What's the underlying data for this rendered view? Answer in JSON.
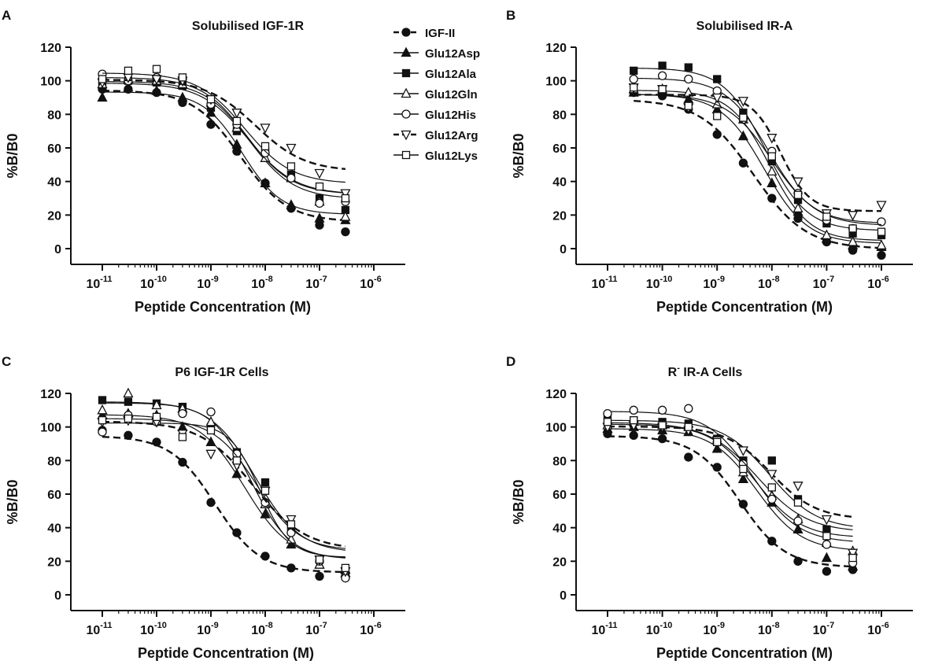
{
  "figure": {
    "legend_entries": [
      {
        "name": "IGF-II",
        "marker": "filled-circle",
        "line": "dashed"
      },
      {
        "name": "Glu12Asp",
        "marker": "filled-triangle-up",
        "line": "solid"
      },
      {
        "name": "Glu12Ala",
        "marker": "filled-square",
        "line": "solid"
      },
      {
        "name": "Glu12Gln",
        "marker": "open-triangle-up",
        "line": "solid"
      },
      {
        "name": "Glu12His",
        "marker": "open-circle",
        "line": "solid"
      },
      {
        "name": "Glu12Arg",
        "marker": "open-triangle-down",
        "line": "dashed"
      },
      {
        "name": "Glu12Lys",
        "marker": "open-square",
        "line": "solid"
      }
    ],
    "legend_placement": "right of panel A",
    "colors": {
      "ink": "#111111",
      "background": "#ffffff"
    }
  },
  "chart_data": [
    {
      "type": "scatter",
      "panel": "A",
      "title": "Solubilised IGF-1R",
      "xlabel": "Peptide Concentration (M)",
      "ylabel": "%B/B0",
      "x_scale": "log",
      "xlim": [
        1e-11,
        1e-06
      ],
      "ylim": [
        0,
        120
      ],
      "x_ticks": [
        1e-11,
        1e-10,
        1e-09,
        1e-08,
        1e-07,
        1e-06
      ],
      "y_ticks": [
        0,
        20,
        40,
        60,
        80,
        100,
        120
      ],
      "grid": false,
      "x": [
        1e-11,
        3e-11,
        1e-10,
        3e-10,
        1e-09,
        3e-09,
        1e-08,
        3e-08,
        1e-07,
        3e-07
      ],
      "series": [
        {
          "name": "IGF-II",
          "values": [
            95,
            95,
            93,
            87,
            74,
            58,
            39,
            24,
            14,
            10
          ],
          "fit_curve": "dashed"
        },
        {
          "name": "Glu12Asp",
          "values": [
            90,
            96,
            94,
            90,
            81,
            62,
            39,
            26,
            18,
            17
          ],
          "fit_curve": "solid"
        },
        {
          "name": "Glu12Ala",
          "values": [
            97,
            100,
            99,
            97,
            84,
            70,
            58,
            44,
            30,
            23
          ],
          "fit_curve": "solid"
        },
        {
          "name": "Glu12Gln",
          "values": [
            98,
            101,
            100,
            98,
            87,
            72,
            54,
            42,
            28,
            19
          ],
          "fit_curve": "solid"
        },
        {
          "name": "Glu12His",
          "values": [
            104,
            100,
            102,
            101,
            86,
            74,
            57,
            42,
            27,
            28
          ],
          "fit_curve": "solid"
        },
        {
          "name": "Glu12Arg",
          "values": [
            99,
            102,
            101,
            100,
            89,
            81,
            72,
            60,
            45,
            33
          ],
          "fit_curve": "dashed"
        },
        {
          "name": "Glu12Lys",
          "values": [
            101,
            106,
            107,
            102,
            89,
            76,
            61,
            49,
            37,
            30
          ],
          "fit_curve": "solid"
        }
      ]
    },
    {
      "type": "scatter",
      "panel": "B",
      "title": "Solubilised IR-A",
      "xlabel": "Peptide Concentration (M)",
      "ylabel": "%B/B0",
      "x_scale": "log",
      "xlim": [
        1e-11,
        1e-06
      ],
      "ylim": [
        0,
        120
      ],
      "x_ticks": [
        1e-11,
        1e-10,
        1e-09,
        1e-08,
        1e-07,
        1e-06
      ],
      "y_ticks": [
        0,
        20,
        40,
        60,
        80,
        100,
        120
      ],
      "grid": false,
      "x": [
        3e-11,
        1e-10,
        3e-10,
        1e-09,
        3e-09,
        1e-08,
        3e-08,
        1e-07,
        3e-07,
        1e-06
      ],
      "series": [
        {
          "name": "IGF-II",
          "values": [
            93,
            91,
            83,
            68,
            51,
            30,
            18,
            4,
            -1,
            -4
          ],
          "fit_curve": "dashed"
        },
        {
          "name": "Glu12Asp",
          "values": [
            93,
            94,
            89,
            83,
            67,
            39,
            22,
            6,
            2,
            1
          ],
          "fit_curve": "solid"
        },
        {
          "name": "Glu12Ala",
          "values": [
            106,
            109,
            108,
            101,
            81,
            52,
            29,
            15,
            9,
            8
          ],
          "fit_curve": "solid"
        },
        {
          "name": "Glu12Gln",
          "values": [
            95,
            95,
            93,
            86,
            77,
            46,
            24,
            8,
            4,
            2
          ],
          "fit_curve": "solid"
        },
        {
          "name": "Glu12His",
          "values": [
            101,
            103,
            101,
            94,
            77,
            58,
            33,
            17,
            12,
            16
          ],
          "fit_curve": "solid"
        },
        {
          "name": "Glu12Arg",
          "values": [
            96,
            95,
            84,
            90,
            88,
            66,
            40,
            21,
            20,
            26
          ],
          "fit_curve": "dashed"
        },
        {
          "name": "Glu12Lys",
          "values": [
            96,
            95,
            85,
            79,
            78,
            55,
            32,
            19,
            12,
            10
          ],
          "fit_curve": "solid"
        }
      ]
    },
    {
      "type": "scatter",
      "panel": "C",
      "title": "P6 IGF-1R Cells",
      "xlabel": "Peptide Concentration (M)",
      "ylabel": "%B/B0",
      "x_scale": "log",
      "xlim": [
        1e-11,
        1e-06
      ],
      "ylim": [
        0,
        120
      ],
      "x_ticks": [
        1e-11,
        1e-10,
        1e-09,
        1e-08,
        1e-07,
        1e-06
      ],
      "y_ticks": [
        0,
        20,
        40,
        60,
        80,
        100,
        120
      ],
      "grid": false,
      "x": [
        1e-11,
        3e-11,
        1e-10,
        3e-10,
        1e-09,
        3e-09,
        1e-08,
        3e-08,
        1e-07,
        3e-07
      ],
      "series": [
        {
          "name": "IGF-II",
          "values": [
            98,
            95,
            91,
            79,
            55,
            37,
            23,
            16,
            11,
            13
          ],
          "fit_curve": "dashed"
        },
        {
          "name": "Glu12Asp",
          "values": [
            107,
            108,
            107,
            100,
            91,
            72,
            48,
            30,
            18,
            15
          ],
          "fit_curve": "solid"
        },
        {
          "name": "Glu12Ala",
          "values": [
            116,
            115,
            114,
            112,
            100,
            85,
            67,
            40,
            21,
            14
          ],
          "fit_curve": "solid"
        },
        {
          "name": "Glu12Gln",
          "values": [
            110,
            120,
            113,
            111,
            103,
            83,
            54,
            33,
            18,
            13
          ],
          "fit_curve": "solid"
        },
        {
          "name": "Glu12His",
          "values": [
            97,
            107,
            103,
            108,
            109,
            84,
            55,
            37,
            20,
            10
          ],
          "fit_curve": "solid"
        },
        {
          "name": "Glu12Arg",
          "values": [
            103,
            104,
            103,
            96,
            84,
            77,
            62,
            45,
            21,
            14
          ],
          "fit_curve": "dashed"
        },
        {
          "name": "Glu12Lys",
          "values": [
            104,
            105,
            106,
            94,
            98,
            80,
            62,
            42,
            21,
            16
          ],
          "fit_curve": "solid"
        }
      ]
    },
    {
      "type": "scatter",
      "panel": "D",
      "title_prefix": "R",
      "title_superscript": "-",
      "title_suffix": " IR-A Cells",
      "xlabel": "Peptide Concentration (M)",
      "ylabel": "%B/B0",
      "x_scale": "log",
      "xlim": [
        1e-11,
        1e-06
      ],
      "ylim": [
        0,
        120
      ],
      "x_ticks": [
        1e-11,
        1e-10,
        1e-09,
        1e-08,
        1e-07,
        1e-06
      ],
      "y_ticks": [
        0,
        20,
        40,
        60,
        80,
        100,
        120
      ],
      "grid": false,
      "x": [
        1e-11,
        3e-11,
        1e-10,
        3e-10,
        1e-09,
        3e-09,
        1e-08,
        3e-08,
        1e-07,
        3e-07
      ],
      "series": [
        {
          "name": "IGF-II",
          "values": [
            96,
            95,
            93,
            82,
            76,
            54,
            32,
            20,
            14,
            15
          ],
          "fit_curve": "dashed"
        },
        {
          "name": "Glu12Asp",
          "values": [
            99,
            100,
            98,
            97,
            87,
            69,
            55,
            39,
            22,
            17
          ],
          "fit_curve": "solid"
        },
        {
          "name": "Glu12Ala",
          "values": [
            105,
            104,
            103,
            102,
            93,
            80,
            80,
            57,
            39,
            21
          ],
          "fit_curve": "solid"
        },
        {
          "name": "Glu12Gln",
          "values": [
            101,
            103,
            101,
            100,
            92,
            73,
            59,
            45,
            31,
            26
          ],
          "fit_curve": "solid"
        },
        {
          "name": "Glu12His",
          "values": [
            108,
            110,
            110,
            111,
            91,
            78,
            57,
            44,
            30,
            19
          ],
          "fit_curve": "solid"
        },
        {
          "name": "Glu12Arg",
          "values": [
            100,
            101,
            100,
            98,
            92,
            86,
            72,
            65,
            45,
            25
          ],
          "fit_curve": "dashed"
        },
        {
          "name": "Glu12Lys",
          "values": [
            103,
            104,
            101,
            100,
            91,
            75,
            64,
            55,
            35,
            22
          ],
          "fit_curve": "solid"
        }
      ]
    }
  ]
}
